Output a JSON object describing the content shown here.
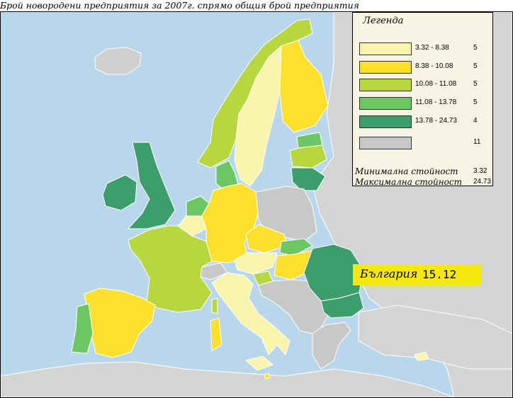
{
  "title": "Брой новородени предприятия за 2007г. спрямо общия брой предприятия",
  "colors": {
    "sea": "#b9d7ea",
    "no_data_land": "#d4d4d4",
    "border": "#ffffff",
    "c1": "#fbf4ae",
    "c2": "#fbe12d",
    "c3": "#b7d640",
    "c4": "#6cc664",
    "c5": "#3e9e6b",
    "gray": "#c8c8c8",
    "highlight": "#f5e811"
  },
  "legend": {
    "title": "Легенда",
    "classes": [
      {
        "range": "3.32 - 8.38",
        "count": "5",
        "color": "#fbf4ae"
      },
      {
        "range": "8.38 - 10.08",
        "count": "5",
        "color": "#fbe12d"
      },
      {
        "range": "10.08 - 11.08",
        "count": "5",
        "color": "#b7d640"
      },
      {
        "range": "11.08 - 13.78",
        "count": "5",
        "color": "#6cc664"
      },
      {
        "range": "13.78 - 24.73",
        "count": "4",
        "color": "#3e9e6b"
      },
      {
        "range": "",
        "count": "11",
        "color": "#c8c8c8"
      }
    ],
    "min_label": "Минимална стойност",
    "min_value": "3.32",
    "max_label": "Максимална стойност",
    "max_value": "24.73"
  },
  "callout": {
    "country": "България",
    "value": "15.12"
  }
}
